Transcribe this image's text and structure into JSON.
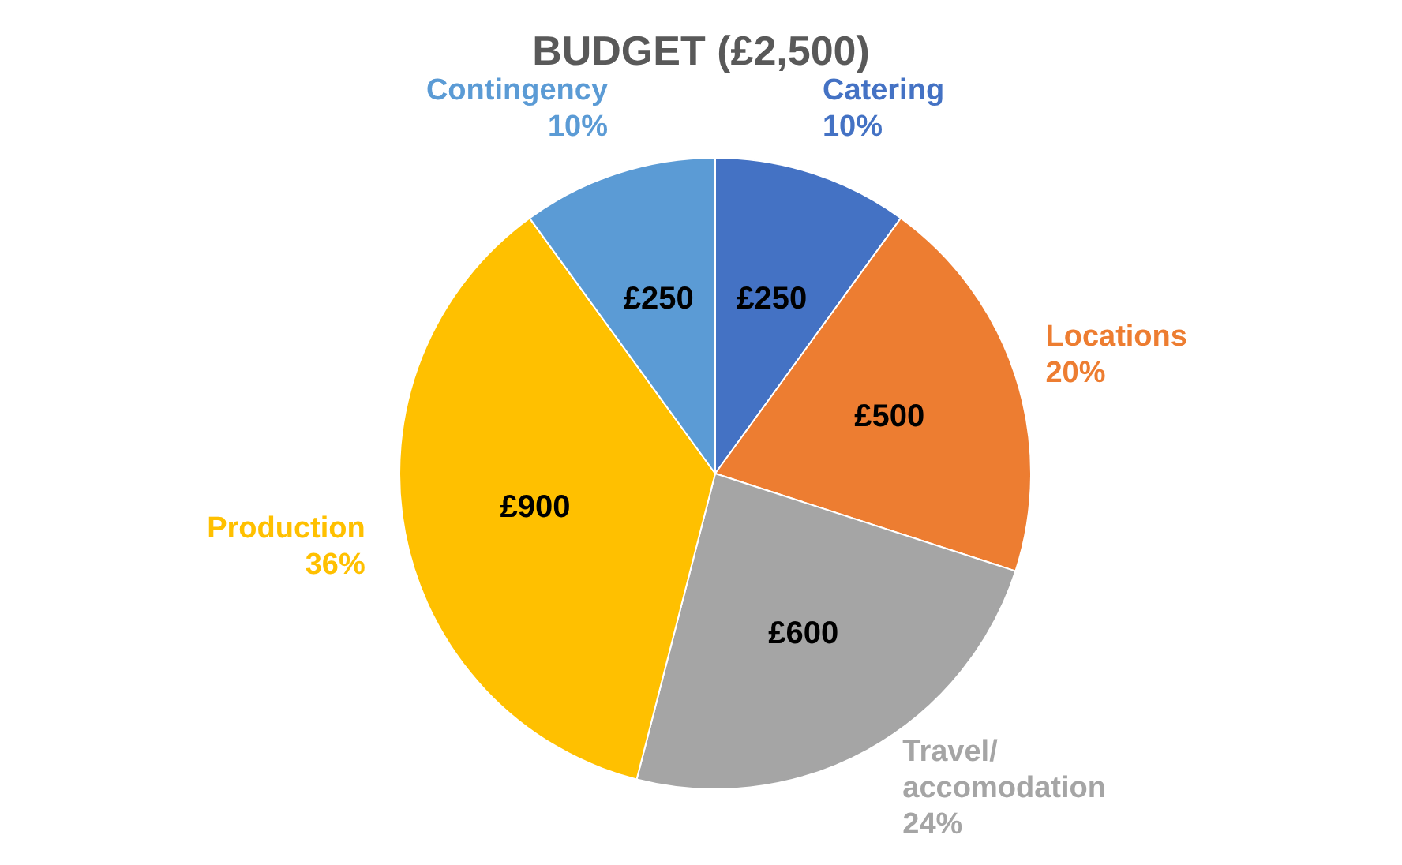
{
  "chart_data": {
    "type": "pie",
    "title": "BUDGET (£2,500)",
    "categories": [
      "Catering",
      "Locations",
      "Travel/accomodation",
      "Production",
      "Contingency"
    ],
    "values": [
      250,
      500,
      600,
      900,
      250
    ],
    "annotations": [
      "10%",
      "20%",
      "24%",
      "36%",
      "10%"
    ],
    "value_labels": [
      "£250",
      "£500",
      "£600",
      "£900",
      "£250"
    ],
    "colors": [
      "#4472c4",
      "#ed7d31",
      "#a5a5a5",
      "#ffc000",
      "#5b9bd5"
    ]
  }
}
